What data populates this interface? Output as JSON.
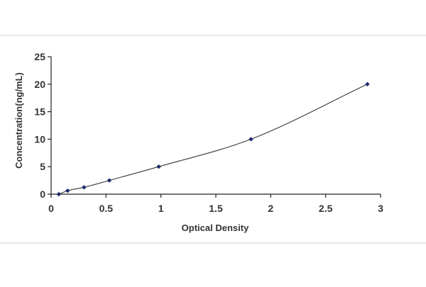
{
  "chart_data": {
    "type": "scatter",
    "title": "",
    "xlabel": "Optical Density",
    "ylabel": "Concentration(ng/mL)",
    "xlim": [
      0,
      3
    ],
    "ylim": [
      0,
      25
    ],
    "xticks": [
      0,
      0.5,
      1,
      1.5,
      2,
      2.5,
      3
    ],
    "xtick_labels": [
      "0",
      "0.5",
      "1",
      "1.5",
      "2",
      "2.5",
      "3"
    ],
    "yticks": [
      0,
      5,
      10,
      15,
      20,
      25
    ],
    "ytick_labels": [
      "0",
      "5",
      "10",
      "15",
      "20",
      "25"
    ],
    "grid": false,
    "legend": "none",
    "marker_color": "#1f2a6b",
    "line_color": "#3a3a3a",
    "series": [
      {
        "points": [
          {
            "x": 0.07,
            "y": 0
          },
          {
            "x": 0.15,
            "y": 0.625
          },
          {
            "x": 0.3,
            "y": 1.25
          },
          {
            "x": 0.53,
            "y": 2.5
          },
          {
            "x": 0.98,
            "y": 5
          },
          {
            "x": 1.82,
            "y": 10
          },
          {
            "x": 2.88,
            "y": 20
          }
        ],
        "trendline": "smooth"
      }
    ]
  }
}
